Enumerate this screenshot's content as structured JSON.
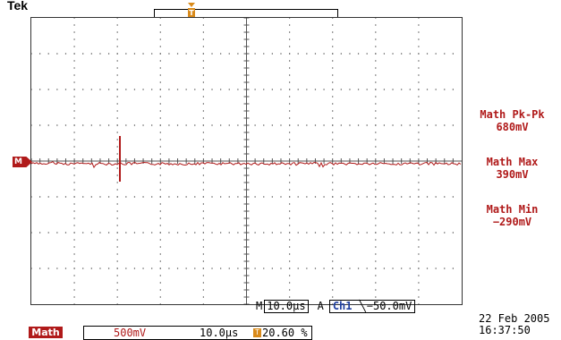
{
  "brand": "Tek",
  "channel_marker": "M",
  "measurements": [
    {
      "label": "Math Pk-Pk",
      "value": "680mV"
    },
    {
      "label": "Math Max",
      "value": "390mV"
    },
    {
      "label": "Math Min",
      "value": "−290mV"
    }
  ],
  "timebase": {
    "prefix": "M",
    "value": "10.0µs",
    "trigger_mode": "A",
    "trigger_source": "Ch1",
    "trigger_slope": "╲",
    "trigger_level": "−50.0mV"
  },
  "status": {
    "math_label": "Math",
    "volts_per_div": "500mV",
    "time_per_div": "10.0µs",
    "trigger_glyph": "T",
    "trigger_position": "20.60 %"
  },
  "date": "22 Feb  2005",
  "time": "16:37:50",
  "colors": {
    "trace": "#b01a1a",
    "accent": "#d98a1a",
    "trigger_source": "#1f3fa0"
  }
}
